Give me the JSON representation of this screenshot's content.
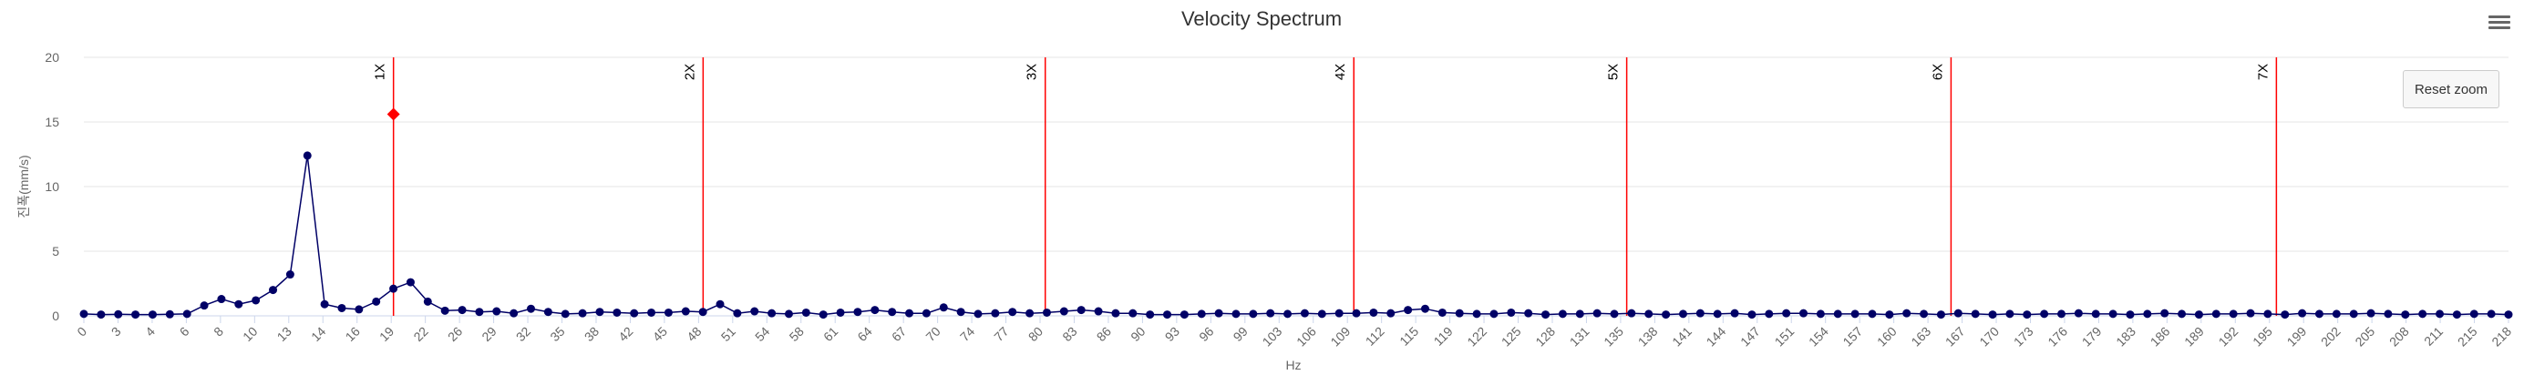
{
  "chart_data": {
    "type": "line",
    "title": "Velocity Spectrum",
    "xlabel": "Hz",
    "ylabel": "진폭(mm/s)",
    "ylim": [
      0,
      20
    ],
    "yticks": [
      0,
      5,
      10,
      15,
      20
    ],
    "grid": "horizontal",
    "x_step": 1.6384,
    "xtick_labels": [
      "0",
      "3",
      "4",
      "6",
      "8",
      "10",
      "13",
      "14",
      "16",
      "19",
      "22",
      "26",
      "29",
      "32",
      "35",
      "38",
      "42",
      "45",
      "48",
      "51",
      "54",
      "58",
      "61",
      "64",
      "67",
      "70",
      "74",
      "77",
      "80",
      "83",
      "86",
      "90",
      "93",
      "96",
      "99",
      "103",
      "106",
      "109",
      "112",
      "115",
      "119",
      "122",
      "125",
      "128",
      "131",
      "135",
      "138",
      "141",
      "144",
      "147",
      "151",
      "154",
      "157",
      "160",
      "163",
      "167",
      "170",
      "173",
      "176",
      "179",
      "183",
      "186",
      "189",
      "192",
      "195",
      "199",
      "202",
      "205",
      "208",
      "211",
      "215",
      "218"
    ],
    "series": [
      {
        "color": "#000066",
        "values": [
          0.15,
          0.1,
          0.12,
          0.1,
          0.1,
          0.12,
          0.15,
          0.8,
          1.3,
          0.9,
          1.2,
          2.0,
          3.2,
          12.4,
          0.9,
          0.6,
          0.5,
          1.1,
          2.1,
          2.6,
          1.1,
          0.4,
          0.45,
          0.3,
          0.35,
          0.2,
          0.55,
          0.3,
          0.15,
          0.2,
          0.3,
          0.25,
          0.2,
          0.25,
          0.25,
          0.35,
          0.3,
          0.9,
          0.2,
          0.35,
          0.2,
          0.15,
          0.25,
          0.1,
          0.25,
          0.3,
          0.45,
          0.3,
          0.2,
          0.2,
          0.65,
          0.3,
          0.15,
          0.2,
          0.3,
          0.2,
          0.25,
          0.35,
          0.45,
          0.35,
          0.2,
          0.2,
          0.1,
          0.1,
          0.1,
          0.15,
          0.2,
          0.15,
          0.15,
          0.2,
          0.15,
          0.2,
          0.15,
          0.2,
          0.2,
          0.25,
          0.2,
          0.45,
          0.55,
          0.25,
          0.2,
          0.15,
          0.15,
          0.25,
          0.2,
          0.1,
          0.15,
          0.15,
          0.2,
          0.15,
          0.2,
          0.15,
          0.1,
          0.15,
          0.2,
          0.15,
          0.2,
          0.1,
          0.15,
          0.2,
          0.2,
          0.15,
          0.15,
          0.15,
          0.15,
          0.1,
          0.2,
          0.15,
          0.1,
          0.2,
          0.15,
          0.1,
          0.15,
          0.1,
          0.15,
          0.15,
          0.2,
          0.15,
          0.15,
          0.1,
          0.15,
          0.2,
          0.15,
          0.1,
          0.15,
          0.15,
          0.2,
          0.15,
          0.1,
          0.2,
          0.15,
          0.15,
          0.15,
          0.2,
          0.15,
          0.1,
          0.15,
          0.15,
          0.1,
          0.15,
          0.15,
          0.1
        ]
      }
    ],
    "marker": {
      "x": 29.5,
      "y": 15.6,
      "color": "#ff0000"
    },
    "harmonics": [
      {
        "label": "1X",
        "x": 29.5
      },
      {
        "label": "2X",
        "x": 59.0
      },
      {
        "label": "3X",
        "x": 91.6
      },
      {
        "label": "4X",
        "x": 121.0
      },
      {
        "label": "5X",
        "x": 147.0
      },
      {
        "label": "6X",
        "x": 177.9
      },
      {
        "label": "7X",
        "x": 208.9
      }
    ],
    "harmonic_color": "#ff0000"
  },
  "toolbar": {
    "reset_label": "Reset zoom"
  },
  "menu_icon": "hamburger-menu-icon"
}
